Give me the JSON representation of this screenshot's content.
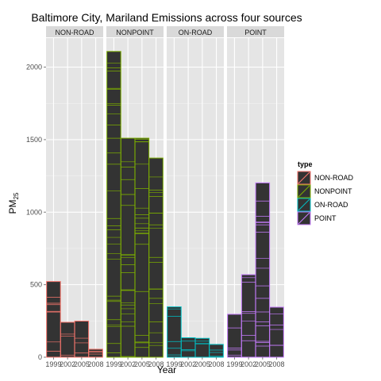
{
  "chart_data": {
    "type": "bar",
    "title": "Baltimore City, Mariland Emissions across four sources",
    "xlabel": "Year",
    "ylabel": "PM",
    "ylabel_sub": "25",
    "ylim": [
      0,
      2200
    ],
    "yticks": [
      0,
      500,
      1000,
      1500,
      2000
    ],
    "x": [
      1999,
      2002,
      2005,
      2008
    ],
    "xtick_labels": [
      "1999",
      "2002",
      "2005",
      "2008"
    ],
    "grid": true,
    "legend_position": "right",
    "legend_title": "type",
    "series": [
      {
        "name": "NON-ROAD",
        "facet_label": "NON-ROAD",
        "color": "#F8766D",
        "values": [
          522,
          241,
          249,
          55
        ]
      },
      {
        "name": "NONPOINT",
        "facet_label": "NONPOINT",
        "color": "#7CAE00",
        "values": [
          2108,
          1510,
          1510,
          1373
        ]
      },
      {
        "name": "ON-ROAD",
        "facet_label": "ON-ROAD",
        "color": "#00BFC4",
        "values": [
          347,
          134,
          130,
          88
        ]
      },
      {
        "name": "POINT",
        "facet_label": "POINT",
        "color": "#C77CFF",
        "values": [
          296,
          569,
          1202,
          345
        ]
      }
    ]
  }
}
